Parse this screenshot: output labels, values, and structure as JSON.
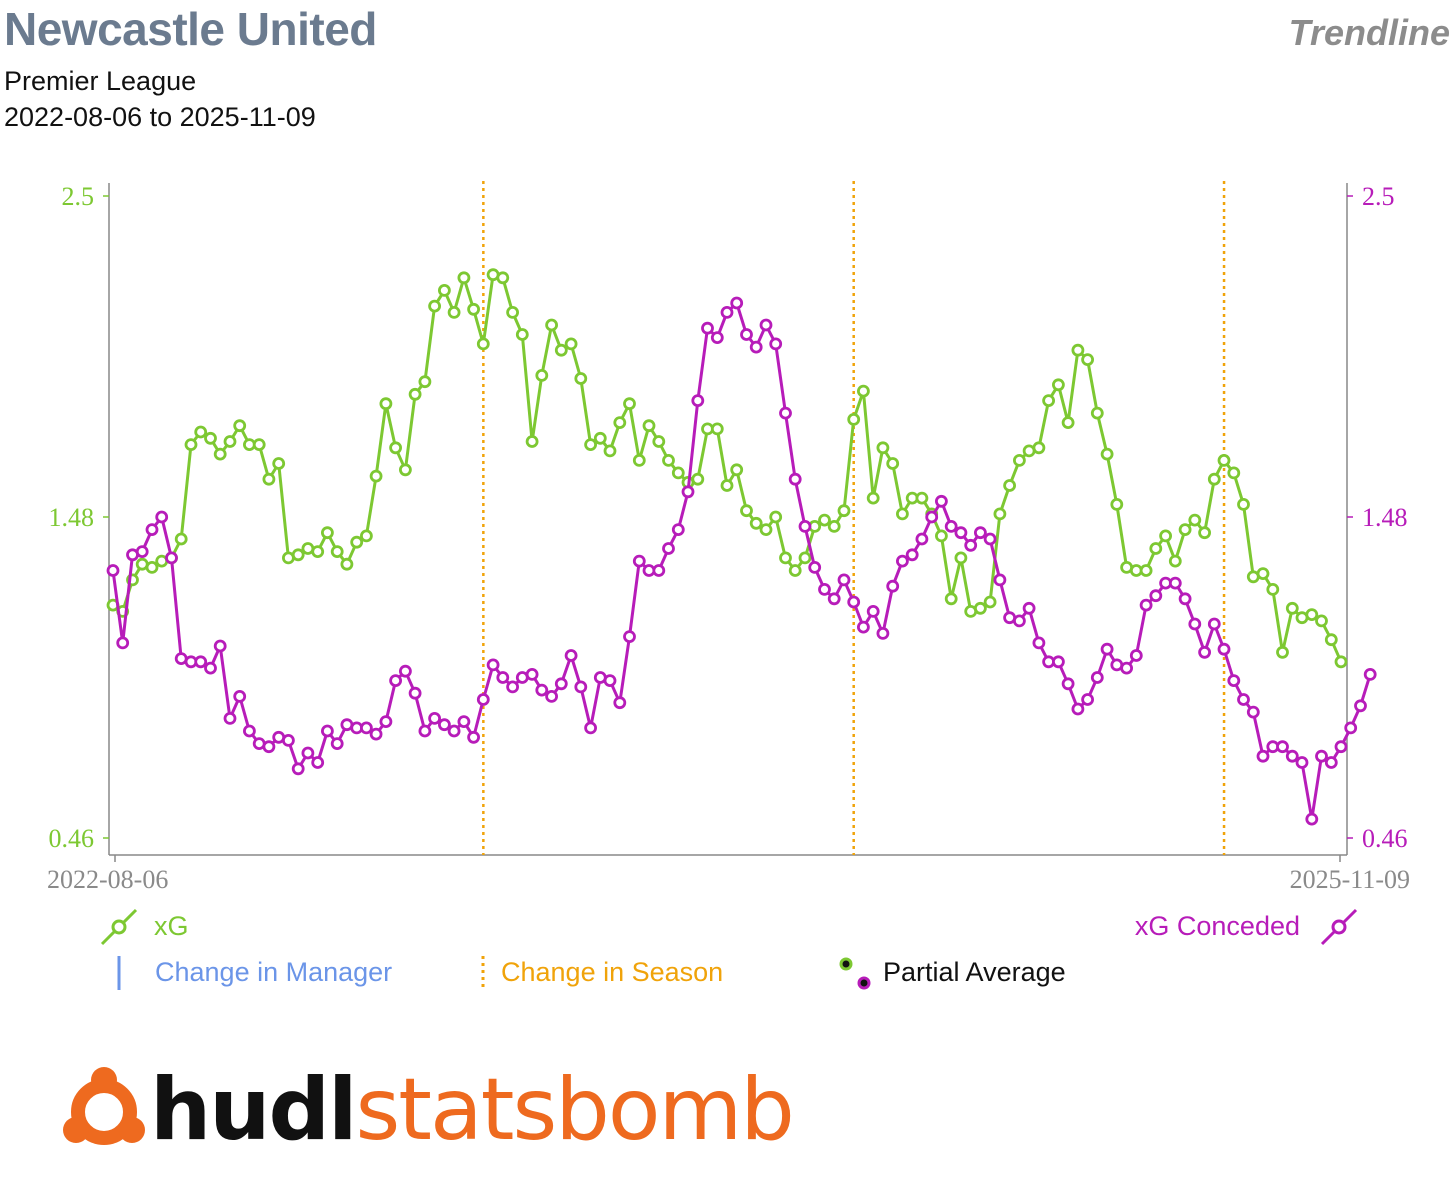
{
  "header": {
    "title": "Newcastle United",
    "subtitle": "Premier League",
    "date_range": "2022-08-06 to 2025-11-09",
    "tag": "Trendline"
  },
  "legend": {
    "xg": "xG",
    "xg_conceded": "xG Conceded",
    "manager_change": "Change in Manager",
    "season_change": "Change in Season",
    "partial_average": "Partial Average"
  },
  "logo": {
    "part1": "hudl",
    "part2": "statsbomb"
  },
  "colors": {
    "xg": "#7dc832",
    "xg_conceded": "#b71cb9",
    "season": "#f0a30a",
    "manager": "#6b95e8",
    "axis": "#888888",
    "title": "#6b7b8f",
    "logo_orange": "#ee6a1f"
  },
  "chart_data": {
    "type": "line",
    "x_start": "2022-08-06",
    "x_end": "2025-11-09",
    "x_tick_labels": [
      "2022-08-06",
      "2025-11-09"
    ],
    "ylim": [
      0.46,
      2.5
    ],
    "y_ticks": [
      0.46,
      1.48,
      2.5
    ],
    "y_tick_labels": [
      "0.46",
      "1.48",
      "2.5"
    ],
    "season_change_match_index": [
      38,
      76,
      114
    ],
    "grid": false,
    "series": [
      {
        "name": "xG",
        "axis": "left",
        "values": [
          1.2,
          1.18,
          1.28,
          1.33,
          1.32,
          1.34,
          1.35,
          1.41,
          1.71,
          1.75,
          1.73,
          1.68,
          1.72,
          1.77,
          1.71,
          1.71,
          1.6,
          1.65,
          1.35,
          1.36,
          1.38,
          1.37,
          1.43,
          1.37,
          1.33,
          1.4,
          1.42,
          1.61,
          1.84,
          1.7,
          1.63,
          1.87,
          1.91,
          2.15,
          2.2,
          2.13,
          2.24,
          2.14,
          2.03,
          2.25,
          2.24,
          2.13,
          2.06,
          1.72,
          1.93,
          2.09,
          2.01,
          2.03,
          1.92,
          1.71,
          1.73,
          1.69,
          1.78,
          1.84,
          1.66,
          1.77,
          1.72,
          1.66,
          1.62,
          1.59,
          1.6,
          1.76,
          1.76,
          1.58,
          1.63,
          1.5,
          1.46,
          1.44,
          1.48,
          1.35,
          1.31,
          1.35,
          1.45,
          1.47,
          1.45,
          1.5,
          1.79,
          1.88,
          1.54,
          1.7,
          1.65,
          1.49,
          1.54,
          1.54,
          1.49,
          1.42,
          1.22,
          1.35,
          1.18,
          1.19,
          1.21,
          1.49,
          1.58,
          1.66,
          1.69,
          1.7,
          1.85,
          1.9,
          1.78,
          2.01,
          1.98,
          1.81,
          1.68,
          1.52,
          1.32,
          1.31,
          1.31,
          1.38,
          1.42,
          1.34,
          1.44,
          1.47,
          1.43,
          1.6,
          1.66,
          1.62,
          1.52,
          1.29,
          1.3,
          1.25,
          1.05,
          1.19,
          1.16,
          1.17,
          1.15,
          1.09,
          1.02
        ]
      },
      {
        "name": "xG Conceded",
        "axis": "right",
        "values": [
          1.31,
          1.08,
          1.36,
          1.37,
          1.44,
          1.48,
          1.35,
          1.03,
          1.02,
          1.02,
          1.0,
          1.07,
          0.84,
          0.91,
          0.8,
          0.76,
          0.75,
          0.78,
          0.77,
          0.68,
          0.73,
          0.7,
          0.8,
          0.76,
          0.82,
          0.81,
          0.81,
          0.79,
          0.83,
          0.96,
          0.99,
          0.92,
          0.8,
          0.84,
          0.82,
          0.8,
          0.83,
          0.78,
          0.9,
          1.01,
          0.97,
          0.94,
          0.97,
          0.98,
          0.93,
          0.91,
          0.95,
          1.04,
          0.94,
          0.81,
          0.97,
          0.96,
          0.89,
          1.1,
          1.34,
          1.31,
          1.31,
          1.38,
          1.44,
          1.56,
          1.85,
          2.08,
          2.05,
          2.13,
          2.16,
          2.06,
          2.02,
          2.09,
          2.03,
          1.81,
          1.6,
          1.45,
          1.32,
          1.25,
          1.22,
          1.28,
          1.21,
          1.13,
          1.18,
          1.11,
          1.26,
          1.34,
          1.36,
          1.41,
          1.48,
          1.53,
          1.45,
          1.43,
          1.39,
          1.43,
          1.41,
          1.28,
          1.16,
          1.15,
          1.19,
          1.08,
          1.02,
          1.02,
          0.95,
          0.87,
          0.9,
          0.97,
          1.06,
          1.01,
          1.0,
          1.04,
          1.2,
          1.23,
          1.27,
          1.27,
          1.22,
          1.14,
          1.05,
          1.14,
          1.06,
          0.96,
          0.9,
          0.86,
          0.72,
          0.75,
          0.75,
          0.72,
          0.7,
          0.52,
          0.72,
          0.7,
          0.75,
          0.81,
          0.88,
          0.98
        ]
      }
    ]
  }
}
